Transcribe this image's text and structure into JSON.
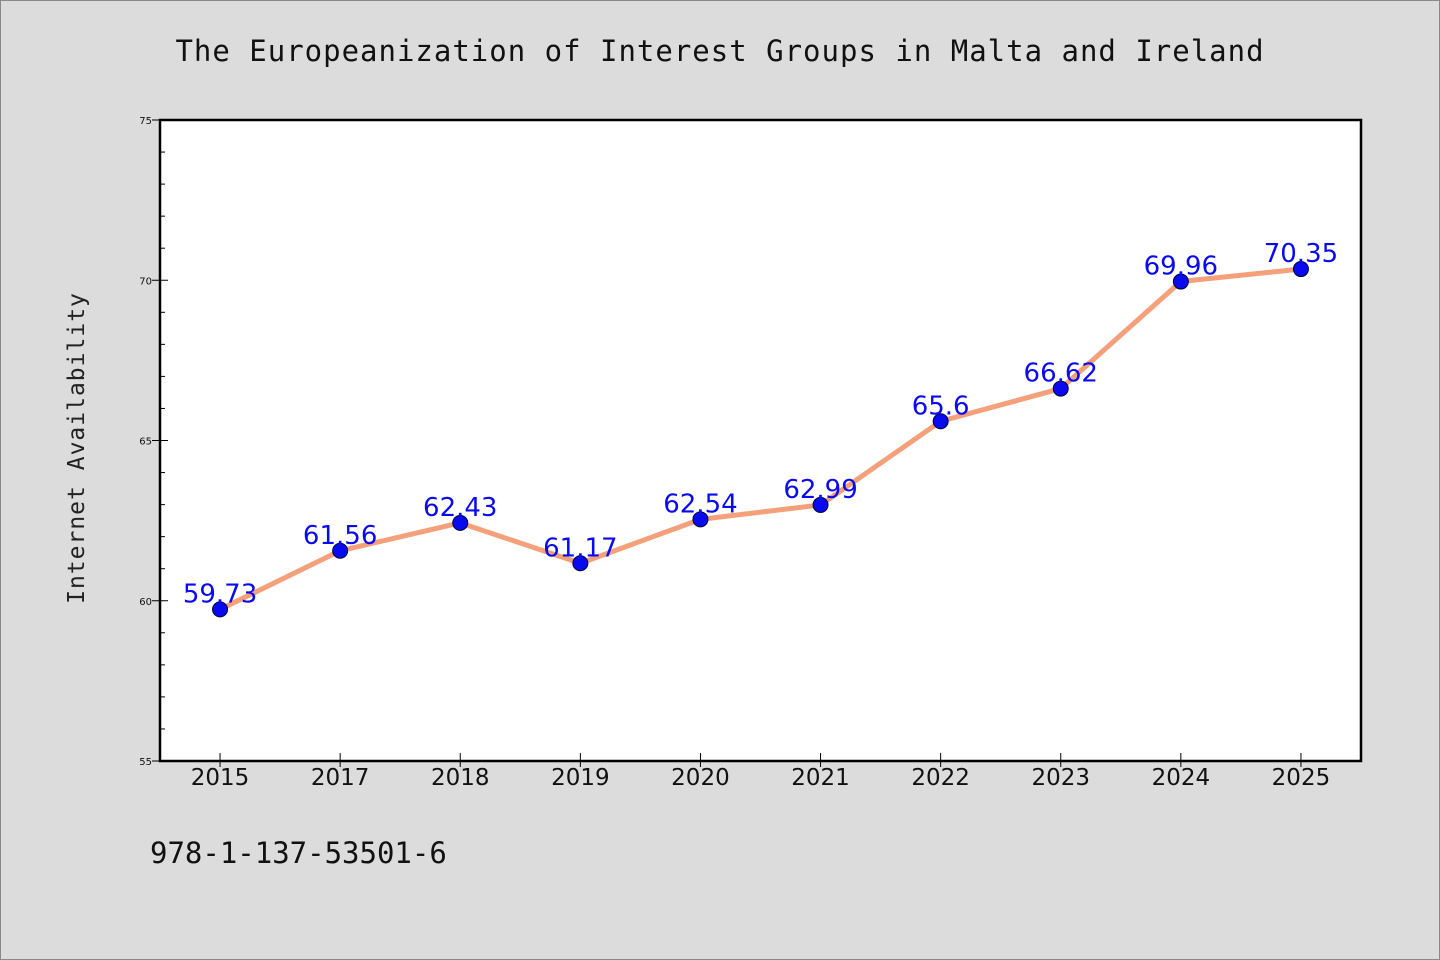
{
  "chart_data": {
    "type": "line",
    "title": "The Europeanization of Interest Groups in Malta and Ireland",
    "xlabel": "",
    "ylabel": "Internet Availability",
    "categories": [
      "2015",
      "2017",
      "2018",
      "2019",
      "2020",
      "2021",
      "2022",
      "2023",
      "2024",
      "2025"
    ],
    "values": [
      59.73,
      61.56,
      62.43,
      61.17,
      62.54,
      62.99,
      65.6,
      66.62,
      69.96,
      70.35
    ],
    "data_labels": [
      "59.73",
      "61.56",
      "62.43",
      "61.17",
      "62.54",
      "62.99",
      "65.6",
      "66.62",
      "69.96",
      "70.35"
    ],
    "ylim": [
      55,
      75
    ],
    "yticks": [
      55,
      60,
      65,
      70,
      75
    ],
    "grid": false,
    "legend": "none",
    "line_color": "#f4a07a",
    "marker_color": "#0a0af0",
    "label_color": "#0a0af0"
  },
  "footer": {
    "isbn": "978-1-137-53501-6"
  }
}
